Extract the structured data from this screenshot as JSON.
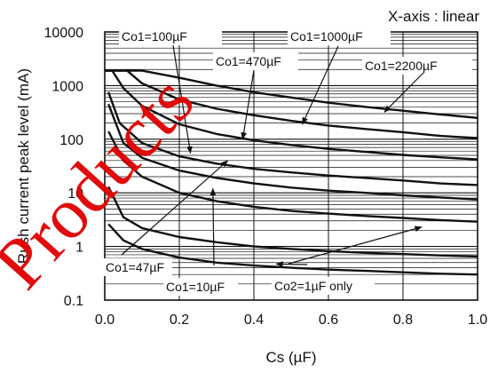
{
  "chart_data": {
    "type": "line",
    "title": "",
    "xlabel": "Cs (µF)",
    "ylabel": "Rush current peak level (mA)",
    "x_scale": "linear",
    "y_scale": "log",
    "xlim": [
      0.0,
      1.0
    ],
    "ylim": [
      0.1,
      10000
    ],
    "x_ticks": [
      "0.0",
      "0.2",
      "0.4",
      "0.6",
      "0.8",
      "1.0"
    ],
    "y_ticks": [
      "0.1",
      "1",
      "10",
      "100",
      "1000",
      "10000"
    ],
    "grid": true,
    "note": "X-axis : linear",
    "watermark": "Products",
    "series": [
      {
        "name": "Co1=2200µF",
        "x": [
          0.0,
          0.1,
          0.2,
          0.3,
          0.4,
          0.5,
          0.6,
          0.7,
          0.8,
          0.9,
          1.0
        ],
        "y": [
          1900,
          1900,
          1400,
          1000,
          750,
          600,
          480,
          400,
          340,
          290,
          250
        ]
      },
      {
        "name": "Co1=1000µF",
        "x": [
          0.0,
          0.06,
          0.1,
          0.2,
          0.3,
          0.4,
          0.5,
          0.6,
          0.7,
          0.8,
          0.9,
          1.0
        ],
        "y": [
          1900,
          1900,
          1100,
          550,
          370,
          280,
          220,
          180,
          155,
          135,
          115,
          105
        ]
      },
      {
        "name": "Co1=470µF",
        "x": [
          0.0,
          0.02,
          0.05,
          0.1,
          0.2,
          0.3,
          0.4,
          0.5,
          0.6,
          0.7,
          0.8,
          0.9,
          1.0
        ],
        "y": [
          1900,
          1900,
          900,
          420,
          190,
          125,
          95,
          78,
          66,
          58,
          51,
          46,
          42
        ]
      },
      {
        "name": "Co1=100µF",
        "x": [
          0.01,
          0.04,
          0.1,
          0.2,
          0.3,
          0.4,
          0.5,
          0.6,
          0.7,
          0.8,
          0.9,
          1.0
        ],
        "y": [
          750,
          200,
          85,
          48,
          35,
          28,
          24,
          21,
          19,
          17,
          15,
          14
        ]
      },
      {
        "name": "Co1=47µF",
        "x": [
          0.01,
          0.05,
          0.1,
          0.2,
          0.3,
          0.4,
          0.5,
          0.6,
          0.7,
          0.8,
          0.9,
          1.0
        ],
        "y": [
          450,
          85,
          45,
          26,
          19,
          15,
          12.5,
          11,
          10,
          9,
          8.2,
          7.5
        ]
      },
      {
        "name": "Co1=10µF",
        "x": [
          0.01,
          0.05,
          0.1,
          0.2,
          0.3,
          0.4,
          0.5,
          0.6,
          0.7,
          0.8,
          0.9,
          1.0
        ],
        "y": [
          140,
          40,
          20,
          10,
          7,
          5.5,
          4.6,
          4.1,
          3.7,
          3.4,
          3.1,
          2.9
        ]
      },
      {
        "name": "",
        "x": [
          0.01,
          0.05,
          0.1,
          0.2,
          0.3,
          0.4,
          0.5,
          0.6,
          0.7,
          0.8,
          0.9,
          1.0
        ],
        "y": [
          13,
          3.5,
          2.2,
          1.5,
          1.2,
          1.0,
          0.9,
          0.82,
          0.76,
          0.72,
          0.68,
          0.65
        ]
      },
      {
        "name": "Co2=1µF only",
        "x": [
          0.01,
          0.05,
          0.1,
          0.2,
          0.3,
          0.4,
          0.5,
          0.6,
          0.7,
          0.8,
          0.9,
          1.0
        ],
        "y": [
          2.6,
          1.3,
          0.9,
          0.62,
          0.5,
          0.44,
          0.4,
          0.37,
          0.35,
          0.33,
          0.31,
          0.3
        ]
      }
    ],
    "annotations": [
      {
        "text": "Co1=100µF",
        "target": {
          "x": 0.23,
          "y": 55
        }
      },
      {
        "text": "Co1=1000µF",
        "target": {
          "x": 0.53,
          "y": 190
        }
      },
      {
        "text": "Co1=470µF",
        "target": {
          "x": 0.37,
          "y": 100
        }
      },
      {
        "text": "Co1=2200µF",
        "target": {
          "x": 0.75,
          "y": 320
        }
      },
      {
        "text": "Co1=47µF",
        "target": {
          "x": 0.33,
          "y": 40
        }
      },
      {
        "text": "Co1=10µF",
        "target": {
          "x": 0.29,
          "y": 12
        }
      },
      {
        "text": "Co2=1µF only",
        "target": {
          "x": 0.85,
          "y": 2.3
        }
      },
      {
        "text": "",
        "target": {
          "x": 0.46,
          "y": 0.47
        }
      }
    ]
  }
}
